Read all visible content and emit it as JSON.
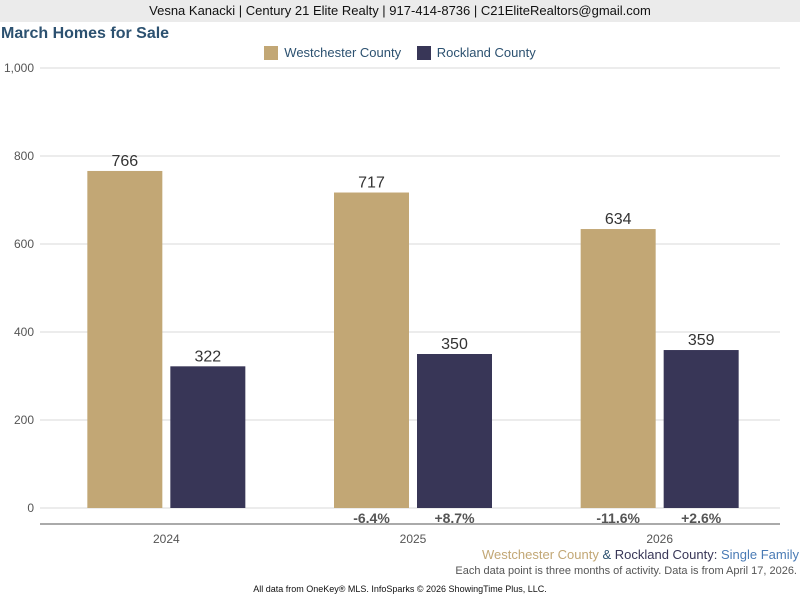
{
  "header": {
    "contact": "Vesna Kanacki | Century 21 Elite Realty | 917-414-8736 | C21EliteRealtors@gmail.com"
  },
  "colors": {
    "westchester": "#c2a775",
    "rockland": "#383657",
    "title": "#2c5170",
    "accent_blue": "#4a7bb5"
  },
  "subtitle": {
    "part1": "Westchester County",
    "amp": " & ",
    "part2": "Rockland County",
    "colon": ": ",
    "part3": "Single Family"
  },
  "note": "Each data point is three months of activity. Data is from April 17, 2026.",
  "footer": "All data from OneKey® MLS. InfoSparks © 2026 ShowingTime Plus, LLC.",
  "chart_data": {
    "type": "bar",
    "title": "March Homes for Sale",
    "categories": [
      "2024",
      "2025",
      "2026"
    ],
    "series": [
      {
        "name": "Westchester County",
        "values": [
          766,
          717,
          634
        ],
        "labels": [
          "766",
          "717",
          "634"
        ],
        "changes": [
          "",
          "-6.4%",
          "-11.6%"
        ]
      },
      {
        "name": "Rockland County",
        "values": [
          322,
          350,
          359
        ],
        "labels": [
          "322",
          "350",
          "359"
        ],
        "changes": [
          "",
          "+8.7%",
          "+2.6%"
        ]
      }
    ],
    "ylim": [
      0,
      1000
    ],
    "yticks": [
      0,
      200,
      400,
      600,
      800,
      1000
    ],
    "ytick_labels": [
      "0",
      "200",
      "400",
      "600",
      "800",
      "1,000"
    ],
    "grid": true,
    "legend_position": "top-center"
  }
}
